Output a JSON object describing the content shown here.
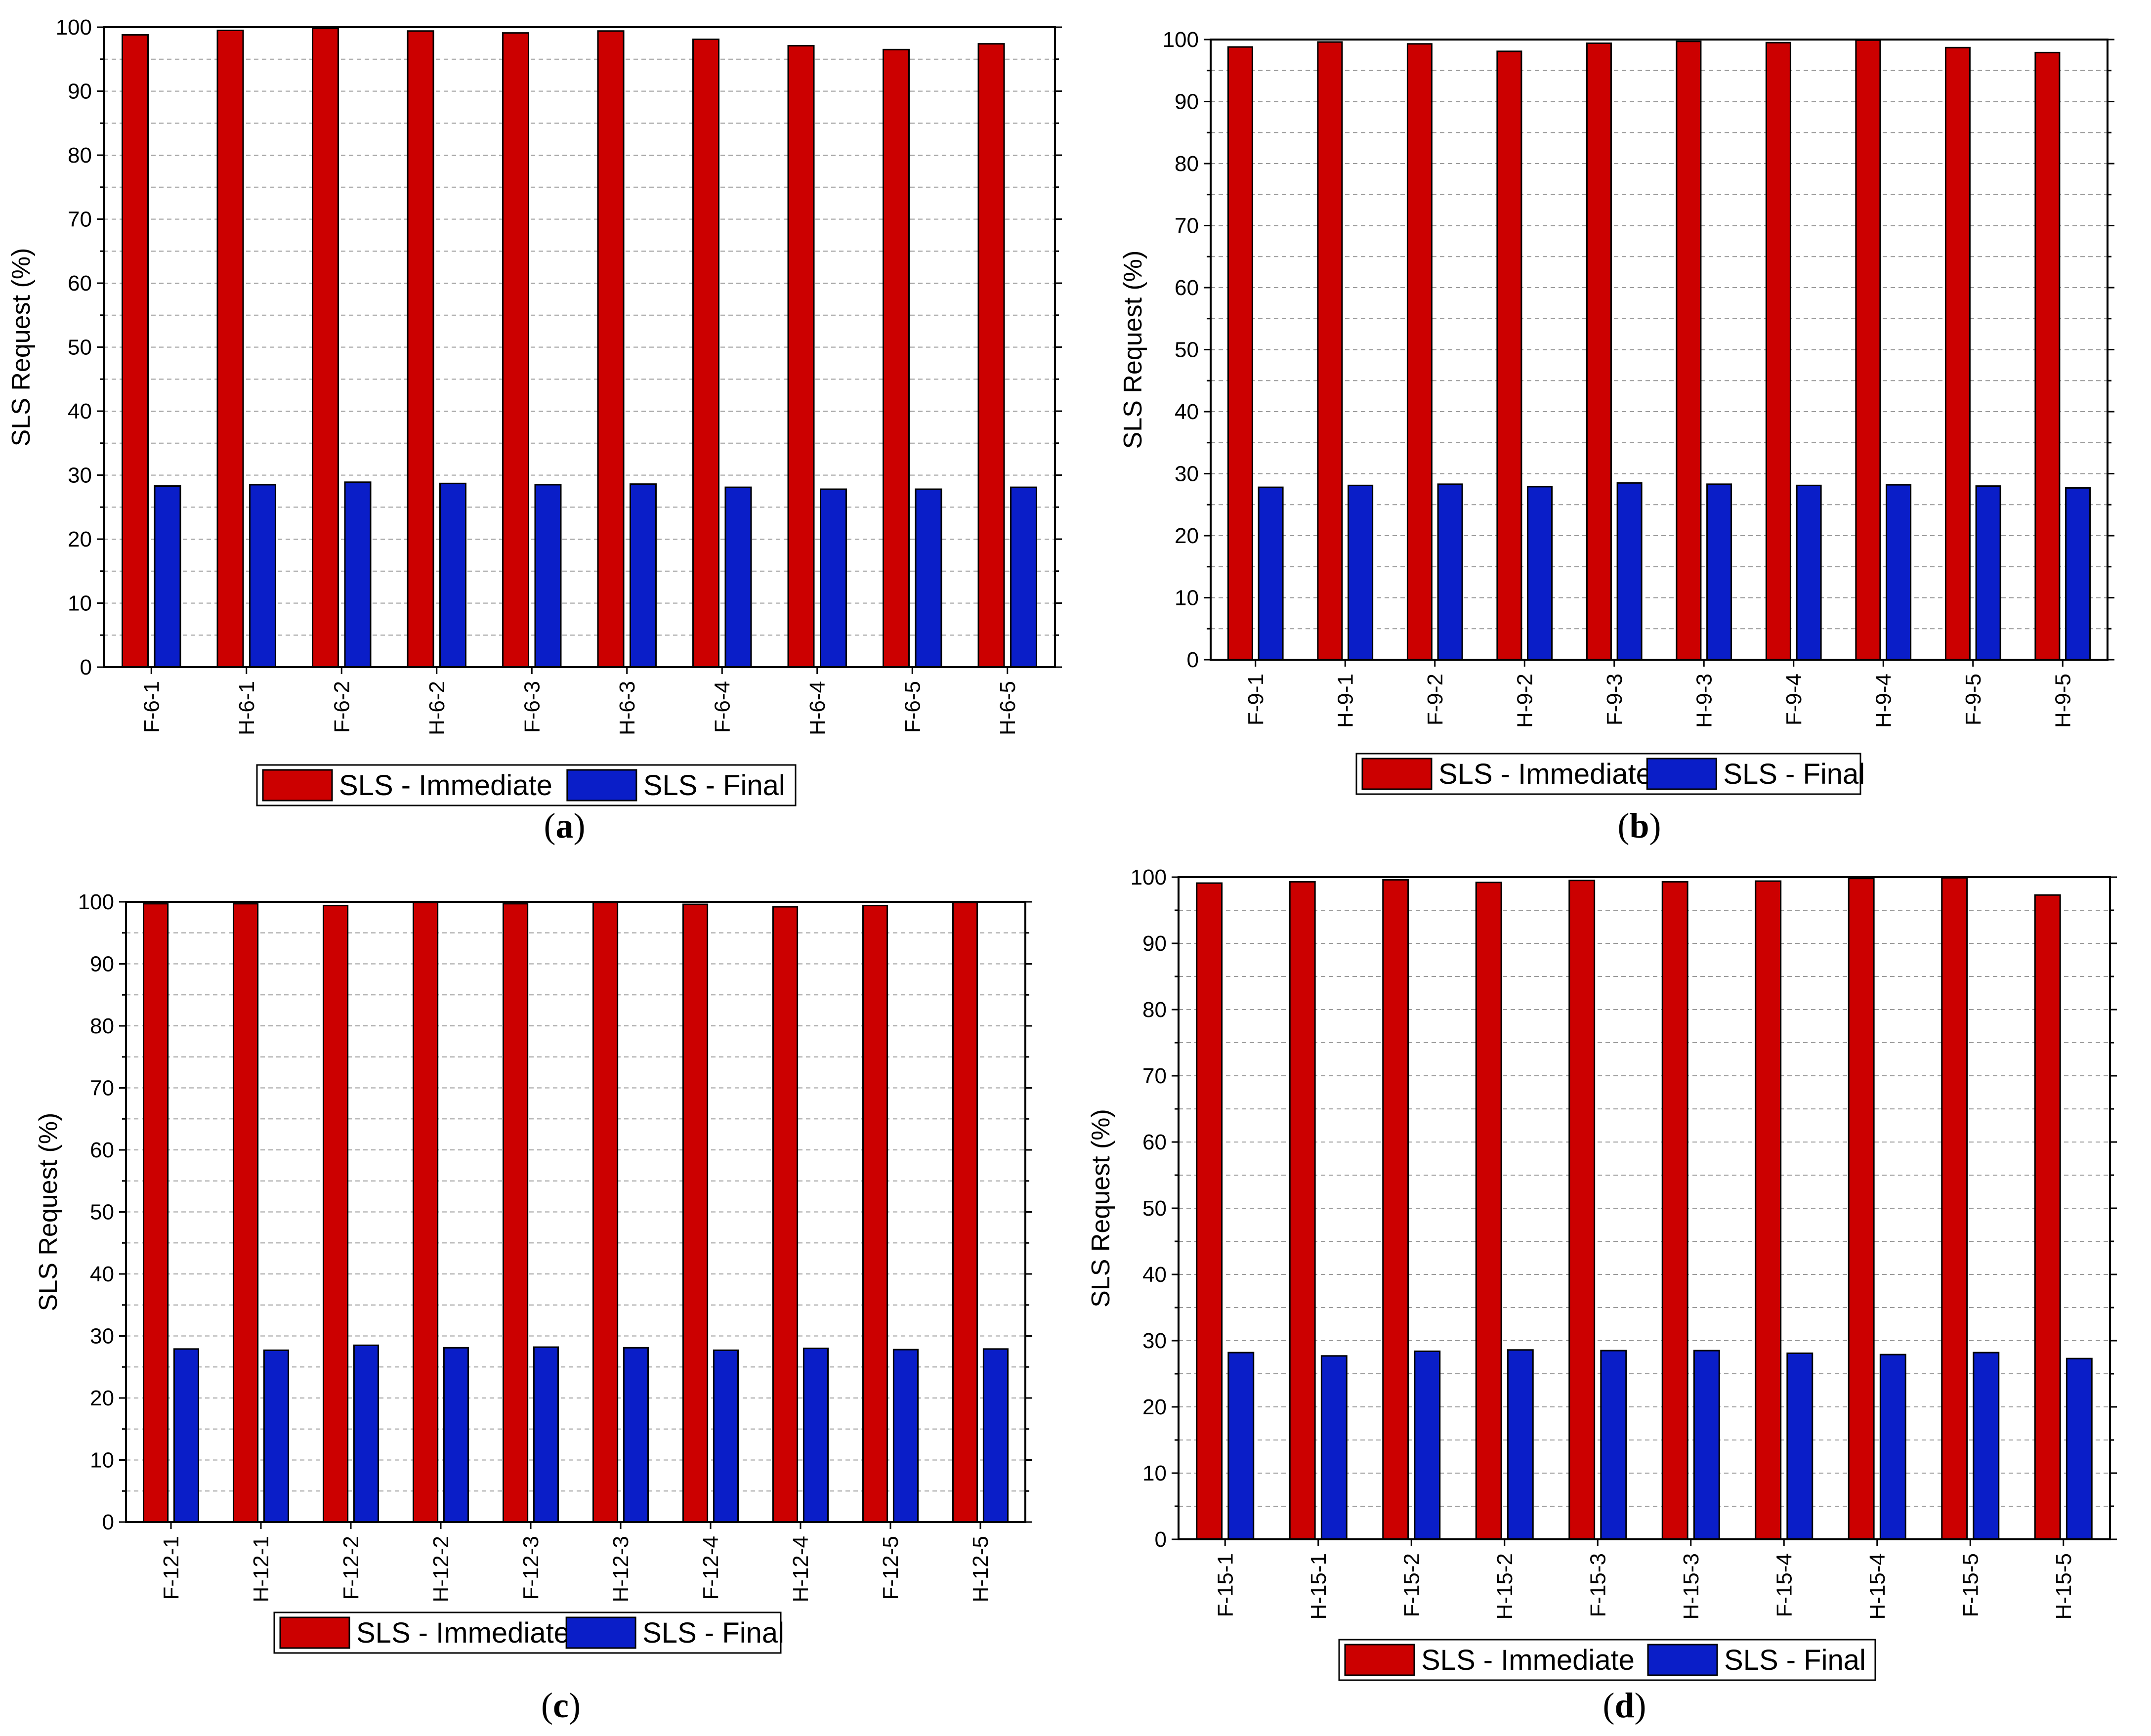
{
  "colors": {
    "immediate": "#cc0000",
    "final": "#0a1ec8"
  },
  "chart_data": [
    {
      "panel": "a",
      "type": "bar",
      "ylabel": "SLS Request (%)",
      "ylim": [
        0,
        100
      ],
      "yticks": [
        "0",
        "10",
        "20",
        "30",
        "40",
        "50",
        "60",
        "70",
        "80",
        "90",
        "100"
      ],
      "grid": true,
      "categories": [
        "F-6-1",
        "H-6-1",
        "F-6-2",
        "H-6-2",
        "F-6-3",
        "H-6-3",
        "F-6-4",
        "H-6-4",
        "F-6-5",
        "H-6-5"
      ],
      "series": [
        {
          "name": "SLS - Immediate",
          "values": [
            98.8,
            99.5,
            99.8,
            99.4,
            99.1,
            99.4,
            98.1,
            97.1,
            96.5,
            97.4
          ]
        },
        {
          "name": "SLS - Final",
          "values": [
            28.3,
            28.5,
            28.9,
            28.7,
            28.5,
            28.6,
            28.1,
            27.8,
            27.8,
            28.1
          ]
        }
      ],
      "legend": [
        "SLS - Immediate",
        "SLS - Final"
      ],
      "legend_position": "bottom",
      "label_open": "(",
      "label_letter": "a",
      "label_close": ")"
    },
    {
      "panel": "b",
      "type": "bar",
      "ylabel": "SLS Request (%)",
      "ylim": [
        0,
        100
      ],
      "yticks": [
        "0",
        "10",
        "20",
        "30",
        "40",
        "50",
        "60",
        "70",
        "80",
        "90",
        "100"
      ],
      "grid": true,
      "categories": [
        "F-9-1",
        "H-9-1",
        "F-9-2",
        "H-9-2",
        "F-9-3",
        "H-9-3",
        "F-9-4",
        "H-9-4",
        "F-9-5",
        "H-9-5"
      ],
      "series": [
        {
          "name": "SLS - Immediate",
          "values": [
            98.8,
            99.6,
            99.3,
            98.1,
            99.4,
            99.7,
            99.5,
            99.9,
            98.7,
            97.9
          ]
        },
        {
          "name": "SLS - Final",
          "values": [
            27.8,
            28.1,
            28.3,
            27.9,
            28.5,
            28.3,
            28.1,
            28.2,
            28.0,
            27.7
          ]
        }
      ],
      "legend": [
        "SLS - Immediate",
        "SLS - Final"
      ],
      "legend_position": "bottom",
      "label_open": "(",
      "label_letter": "b",
      "label_close": ")"
    },
    {
      "panel": "c",
      "type": "bar",
      "ylabel": "SLS Request (%)",
      "ylim": [
        0,
        100
      ],
      "yticks": [
        "0",
        "10",
        "20",
        "30",
        "40",
        "50",
        "60",
        "70",
        "80",
        "90",
        "100"
      ],
      "grid": true,
      "categories": [
        "F-12-1",
        "H-12-1",
        "F-12-2",
        "H-12-2",
        "F-12-3",
        "H-12-3",
        "F-12-4",
        "H-12-4",
        "F-12-5",
        "H-12-5"
      ],
      "series": [
        {
          "name": "SLS - Immediate",
          "values": [
            99.7,
            99.7,
            99.4,
            99.9,
            99.7,
            99.9,
            99.6,
            99.2,
            99.4,
            99.9
          ]
        },
        {
          "name": "SLS - Final",
          "values": [
            27.9,
            27.7,
            28.5,
            28.1,
            28.2,
            28.1,
            27.7,
            28.0,
            27.8,
            27.9
          ]
        }
      ],
      "legend": [
        "SLS - Immediate",
        "SLS - Final"
      ],
      "legend_position": "bottom",
      "label_open": "(",
      "label_letter": "c",
      "label_close": ")"
    },
    {
      "panel": "d",
      "type": "bar",
      "ylabel": "SLS Request (%)",
      "ylim": [
        0,
        100
      ],
      "yticks": [
        "0",
        "10",
        "20",
        "30",
        "40",
        "50",
        "60",
        "70",
        "80",
        "90",
        "100"
      ],
      "grid": true,
      "categories": [
        "F-15-1",
        "H-15-1",
        "F-15-2",
        "H-15-2",
        "F-15-3",
        "H-15-3",
        "F-15-4",
        "H-15-4",
        "F-15-5",
        "H-15-5"
      ],
      "series": [
        {
          "name": "SLS - Immediate",
          "values": [
            99.1,
            99.3,
            99.6,
            99.2,
            99.5,
            99.3,
            99.4,
            99.8,
            99.9,
            97.3
          ]
        },
        {
          "name": "SLS - Final",
          "values": [
            28.2,
            27.7,
            28.4,
            28.6,
            28.5,
            28.5,
            28.1,
            27.9,
            28.2,
            27.3
          ]
        }
      ],
      "legend": [
        "SLS - Immediate",
        "SLS - Final"
      ],
      "legend_position": "bottom",
      "label_open": "(",
      "label_letter": "d",
      "label_close": ")"
    }
  ]
}
